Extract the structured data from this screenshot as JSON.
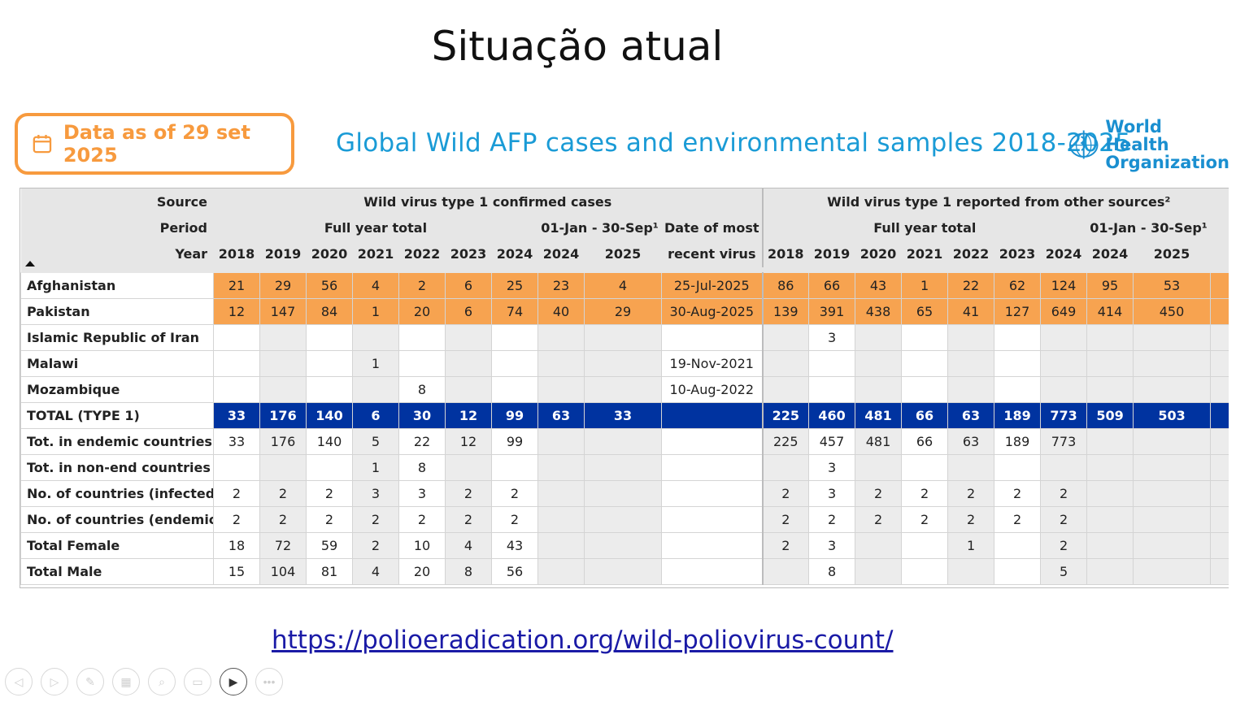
{
  "slide_title": "Situação atual",
  "date_badge": "Data as of 29 set 2025",
  "chart_title": "Global Wild AFP cases and environmental samples 2018-2025",
  "org_name_line1": "World Health",
  "org_name_line2": "Organization",
  "header": {
    "source_label": "Source",
    "period_label": "Period",
    "year_label": "Year",
    "group1": "Wild virus type 1 confirmed cases",
    "group2": "Wild virus type 1 reported from other sources²",
    "full_year_total": "Full year total",
    "partial_period": "01-Jan - 30-Sep¹",
    "date_most_recent_1": "Date of most",
    "date_most_recent_2": "recent virus",
    "years_full": [
      "2018",
      "2019",
      "2020",
      "2021",
      "2022",
      "2023",
      "2024"
    ],
    "years_partial": [
      "2024",
      "2025"
    ]
  },
  "rows": [
    {
      "label": "Afghanistan",
      "style": "orange",
      "c1": [
        "21",
        "29",
        "56",
        "4",
        "2",
        "6",
        "25",
        "23",
        "4"
      ],
      "date": "25-Jul-2025",
      "c2": [
        "86",
        "66",
        "43",
        "1",
        "22",
        "62",
        "124",
        "95",
        "53"
      ]
    },
    {
      "label": "Pakistan",
      "style": "orange",
      "c1": [
        "12",
        "147",
        "84",
        "1",
        "20",
        "6",
        "74",
        "40",
        "29"
      ],
      "date": "30-Aug-2025",
      "c2": [
        "139",
        "391",
        "438",
        "65",
        "41",
        "127",
        "649",
        "414",
        "450"
      ]
    },
    {
      "label": "Islamic Republic of Iran",
      "style": "",
      "c1": [
        "",
        "",
        "",
        "",
        "",
        "",
        "",
        "",
        ""
      ],
      "date": "",
      "c2": [
        "",
        "3",
        "",
        "",
        "",
        "",
        "",
        "",
        ""
      ]
    },
    {
      "label": "Malawi",
      "style": "",
      "c1": [
        "",
        "",
        "",
        "1",
        "",
        "",
        "",
        "",
        ""
      ],
      "date": "19-Nov-2021",
      "c2": [
        "",
        "",
        "",
        "",
        "",
        "",
        "",
        "",
        ""
      ]
    },
    {
      "label": "Mozambique",
      "style": "",
      "c1": [
        "",
        "",
        "",
        "",
        "8",
        "",
        "",
        "",
        ""
      ],
      "date": "10-Aug-2022",
      "c2": [
        "",
        "",
        "",
        "",
        "",
        "",
        "",
        "",
        ""
      ]
    },
    {
      "label": "TOTAL (TYPE 1)",
      "style": "blue",
      "c1": [
        "33",
        "176",
        "140",
        "6",
        "30",
        "12",
        "99",
        "63",
        "33"
      ],
      "date": "",
      "c2": [
        "225",
        "460",
        "481",
        "66",
        "63",
        "189",
        "773",
        "509",
        "503"
      ]
    },
    {
      "label": "Tot. in endemic countries",
      "style": "",
      "c1": [
        "33",
        "176",
        "140",
        "5",
        "22",
        "12",
        "99",
        "",
        ""
      ],
      "date": "",
      "c2": [
        "225",
        "457",
        "481",
        "66",
        "63",
        "189",
        "773",
        "",
        ""
      ]
    },
    {
      "label": "Tot. in non-end countries",
      "style": "",
      "c1": [
        "",
        "",
        "",
        "1",
        "8",
        "",
        "",
        "",
        ""
      ],
      "date": "",
      "c2": [
        "",
        "3",
        "",
        "",
        "",
        "",
        "",
        "",
        ""
      ]
    },
    {
      "label": "No. of countries (infected)",
      "style": "",
      "c1": [
        "2",
        "2",
        "2",
        "3",
        "3",
        "2",
        "2",
        "",
        ""
      ],
      "date": "",
      "c2": [
        "2",
        "3",
        "2",
        "2",
        "2",
        "2",
        "2",
        "",
        ""
      ]
    },
    {
      "label": "No. of countries (endemic)",
      "style": "",
      "c1": [
        "2",
        "2",
        "2",
        "2",
        "2",
        "2",
        "2",
        "",
        ""
      ],
      "date": "",
      "c2": [
        "2",
        "2",
        "2",
        "2",
        "2",
        "2",
        "2",
        "",
        ""
      ]
    },
    {
      "label": "Total Female",
      "style": "",
      "c1": [
        "18",
        "72",
        "59",
        "2",
        "10",
        "4",
        "43",
        "",
        ""
      ],
      "date": "",
      "c2": [
        "2",
        "3",
        "",
        "",
        "1",
        "",
        "2",
        "",
        ""
      ]
    },
    {
      "label": "Total Male",
      "style": "",
      "c1": [
        "15",
        "104",
        "81",
        "4",
        "20",
        "8",
        "56",
        "",
        ""
      ],
      "date": "",
      "c2": [
        "",
        "8",
        "",
        "",
        "",
        "",
        "5",
        "",
        ""
      ]
    }
  ],
  "link_text": "https://polioeradication.org/wild-poliovirus-count/",
  "controls": [
    "previous-icon",
    "next-icon",
    "pen-icon",
    "slides-icon",
    "zoom-icon",
    "subtitles-icon",
    "camera-icon",
    "more-icon"
  ],
  "colors": {
    "accent_orange": "#f79a3e",
    "row_orange": "#f7a350",
    "total_blue": "#0033a0",
    "title_blue": "#1a9bd6"
  }
}
